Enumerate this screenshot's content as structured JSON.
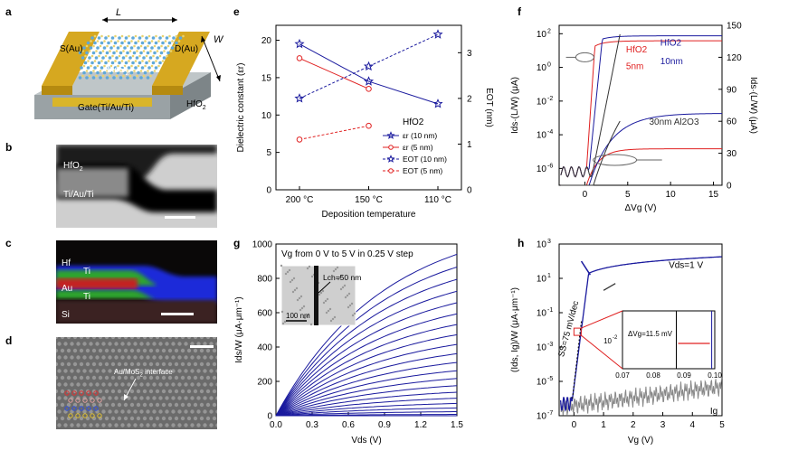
{
  "panels": {
    "a": {
      "letter": "a",
      "L": "L",
      "W": "W",
      "S": "S(Au)",
      "D": "D(Au)",
      "MoS2": "MoS",
      "gate": "Gate(Ti/Au/Ti)",
      "hfo2": "HfO"
    },
    "b": {
      "letter": "b",
      "hfo2": "HfO",
      "metal": "Ti/Au/Ti"
    },
    "c": {
      "letter": "c",
      "hf": "Hf",
      "ti1": "Ti",
      "au": "Au",
      "ti2": "Ti",
      "si": "Si"
    },
    "d": {
      "letter": "d",
      "interface": "Au/MoS interface"
    },
    "e": {
      "letter": "e"
    },
    "f": {
      "letter": "f"
    },
    "g": {
      "letter": "g"
    },
    "h": {
      "letter": "h"
    }
  },
  "chart_data": [
    {
      "id": "e",
      "type": "line",
      "categories": [
        "200 °C",
        "150 °C",
        "110 °C"
      ],
      "xlabel": "Deposition temperature",
      "ylabel": "Dielectric constant (εr)",
      "y2label": "EOT (nm)",
      "ylim": [
        0,
        22
      ],
      "y2lim": [
        0,
        3.6
      ],
      "legend_title": "HfO2",
      "legend_position": "right",
      "series": [
        {
          "name": "εr (10 nm)",
          "axis": "left",
          "color": "#1a1a9e",
          "style": "solid",
          "marker": "star",
          "values": [
            19.5,
            14.5,
            11.5
          ]
        },
        {
          "name": "εr (5 nm)",
          "axis": "left",
          "color": "#e02020",
          "style": "solid",
          "marker": "circle",
          "values": [
            17.6,
            13.5,
            null
          ]
        },
        {
          "name": "EOT (10 nm)",
          "axis": "right",
          "color": "#1a1a9e",
          "style": "dashed",
          "marker": "star",
          "values": [
            2.0,
            2.7,
            3.4
          ]
        },
        {
          "name": "EOT (5 nm)",
          "axis": "right",
          "color": "#e02020",
          "style": "dashed",
          "marker": "circle",
          "values": [
            1.1,
            1.4,
            null
          ]
        }
      ],
      "yticks": [
        0,
        5,
        10,
        15,
        20
      ],
      "y2ticks": [
        0,
        1,
        2,
        3
      ]
    },
    {
      "id": "f",
      "type": "line",
      "xlabel": "ΔVg (V)",
      "ylabel": "Ids·(L/W) (μA)",
      "y2label": "Ids·(L/W) (μA)",
      "xlim": [
        -3,
        16
      ],
      "ylog": true,
      "ylim_exp": [
        -7,
        2.5
      ],
      "y2lim": [
        0,
        150
      ],
      "xticks": [
        0,
        5,
        10,
        15
      ],
      "yticks_exp": [
        -6,
        -4,
        -2,
        0,
        2
      ],
      "y2ticks": [
        0,
        30,
        60,
        90,
        120,
        150
      ],
      "annotations": [
        "HfO2",
        "5nm",
        "HfO2",
        "10nm",
        "30nm Al2O3"
      ],
      "series": [
        {
          "name": "HfO2 5nm",
          "color": "#e02020",
          "vth": 0.2,
          "ss": 0.12,
          "scale": 3.8
        },
        {
          "name": "HfO2 10nm",
          "color": "#1a1a9e",
          "vth": 0.5,
          "ss": 0.18,
          "scale": 7.5
        },
        {
          "name": "30nm Al2O3",
          "color": "#333333",
          "vth": 1.0,
          "ss": 0.35,
          "scale": 15
        }
      ]
    },
    {
      "id": "g",
      "type": "line",
      "xlabel": "Vds (V)",
      "ylabel": "Ids/W (μA·μm⁻¹)",
      "title": "Vg from 0 V to 5 V in 0.25 V step",
      "inset_label": "Lch=50 nm",
      "inset_scale": "100 nm",
      "xlim": [
        0,
        1.5
      ],
      "ylim": [
        0,
        1000
      ],
      "xticks": [
        0.0,
        0.3,
        0.6,
        0.9,
        1.2,
        1.5
      ],
      "yticks": [
        0,
        200,
        400,
        600,
        800,
        1000
      ],
      "vg_start": 0,
      "vg_end": 5,
      "vg_step": 0.25,
      "max_current": 940,
      "color": "#1a1a9e"
    },
    {
      "id": "h",
      "type": "line",
      "xlabel": "Vg (V)",
      "ylabel": "(Ids, Ig)/W (μA·μm⁻¹)",
      "xlim": [
        -0.5,
        5
      ],
      "ylog": true,
      "ylim_exp": [
        -7,
        3
      ],
      "xticks": [
        0,
        1,
        2,
        3,
        4,
        5
      ],
      "yticks_exp": [
        -7,
        -5,
        -3,
        -1,
        1,
        3
      ],
      "vds_label": "Vds=1 V",
      "ss_label": "SS=75 mV/dec",
      "ig_label": "Ig",
      "inset": {
        "xlim": [
          0.07,
          0.1
        ],
        "xticks": [
          0.07,
          0.08,
          0.09,
          0.1
        ],
        "ytick": "10",
        "ytick_exp": "-2",
        "hysteresis": "ΔVg=11.5 mV"
      }
    }
  ]
}
